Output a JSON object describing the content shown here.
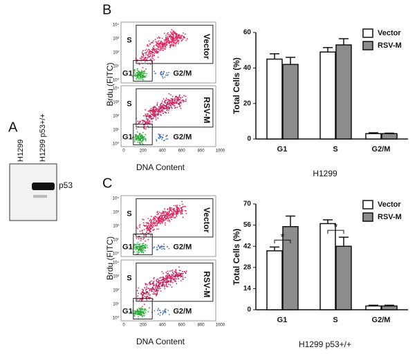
{
  "chart_data": [
    {
      "type": "bar",
      "ylabel": "Total Cells (%)",
      "xlabel": "H1299",
      "categories": [
        "G1",
        "S",
        "G2/M"
      ],
      "series": [
        {
          "name": "Vector",
          "color": "#ffffff",
          "values": [
            45,
            49,
            3
          ],
          "errors": [
            3,
            2.5,
            0.5
          ]
        },
        {
          "name": "RSV-M",
          "color": "#8c8c8c",
          "values": [
            42,
            53,
            3
          ],
          "errors": [
            4,
            3.5,
            0.3
          ]
        }
      ],
      "ylim": [
        0,
        60
      ],
      "yticks": [
        0,
        20,
        40,
        60
      ],
      "legend": "top-right"
    },
    {
      "type": "bar",
      "ylabel": "Total Cells (%)",
      "xlabel": "H1299 p53+/+",
      "categories": [
        "G1",
        "S",
        "G2/M"
      ],
      "series": [
        {
          "name": "Vector",
          "color": "#ffffff",
          "values": [
            39,
            57,
            2.5
          ],
          "errors": [
            2.5,
            2.5,
            0.5
          ]
        },
        {
          "name": "RSV-M",
          "color": "#8c8c8c",
          "values": [
            55,
            42,
            2.5
          ],
          "errors": [
            7,
            6,
            0.5
          ]
        }
      ],
      "ylim": [
        0,
        70
      ],
      "yticks": [
        0,
        14,
        28,
        42,
        56,
        70
      ],
      "legend": "top-right",
      "annotations": [
        "*",
        "*"
      ]
    }
  ],
  "figure": {
    "blot": {
      "label": "A",
      "lanes": [
        "H1299",
        "H1299 p53+/+"
      ],
      "band": "p53"
    },
    "flow": [
      {
        "label": "B",
        "y_axis_label": "Brdu (FITC)",
        "x_axis_label": "DNA Content",
        "conditions": [
          "Vector",
          "RSV-M"
        ],
        "gates": [
          "S",
          "G1",
          "G2/M"
        ],
        "xticks": [
          "0",
          "200",
          "400",
          "600",
          "800",
          "1000"
        ],
        "yticks": [
          "10⁰",
          "10¹",
          "10²",
          "10³",
          "10⁴"
        ]
      },
      {
        "label": "C",
        "y_axis_label": "Brdu (FITC)",
        "x_axis_label": "DNA Content",
        "conditions": [
          "Vector",
          "RSV-M"
        ],
        "gates": [
          "S",
          "G1",
          "G2/M"
        ],
        "xticks": [
          "0",
          "200",
          "400",
          "600",
          "800",
          "1000"
        ],
        "yticks": [
          "10⁰",
          "10¹",
          "10²",
          "10³",
          "10⁴"
        ]
      }
    ]
  }
}
